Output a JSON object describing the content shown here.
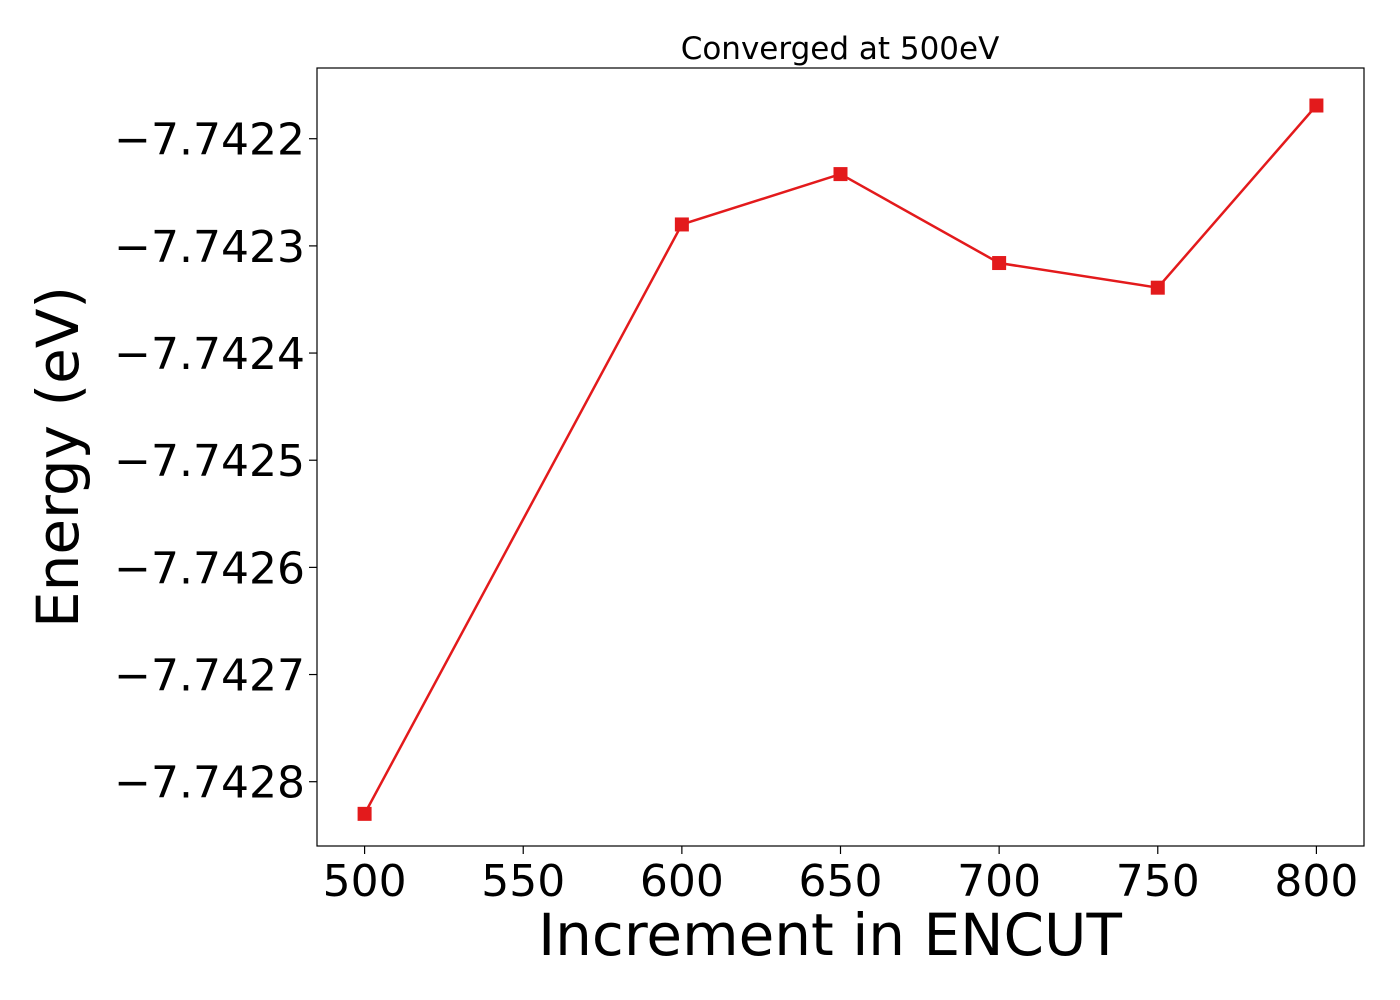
{
  "chart_data": {
    "type": "line",
    "title": "Converged at 500eV",
    "xlabel": "Increment in ENCUT",
    "ylabel": "Energy (eV)",
    "x": [
      500,
      600,
      650,
      700,
      750,
      800
    ],
    "series": [
      {
        "values": [
          -7.74283,
          -7.74228,
          -7.742233,
          -7.742316,
          -7.742339,
          -7.742169
        ],
        "color": "#e31a1c",
        "marker": "square"
      }
    ],
    "xticks": [
      500,
      550,
      600,
      650,
      700,
      750,
      800
    ],
    "xtick_labels": [
      "500",
      "550",
      "600",
      "650",
      "700",
      "750",
      "800"
    ],
    "yticks": [
      -7.7428,
      -7.7427,
      -7.7426,
      -7.7425,
      -7.7424,
      -7.7423,
      -7.7422
    ],
    "ytick_labels": [
      "−7.7428",
      "−7.7427",
      "−7.7426",
      "−7.7425",
      "−7.7424",
      "−7.7423",
      "−7.7422"
    ],
    "xlim": [
      485,
      815
    ],
    "ylim": [
      -7.74286,
      -7.742134
    ],
    "grid": false,
    "legend": "none"
  }
}
